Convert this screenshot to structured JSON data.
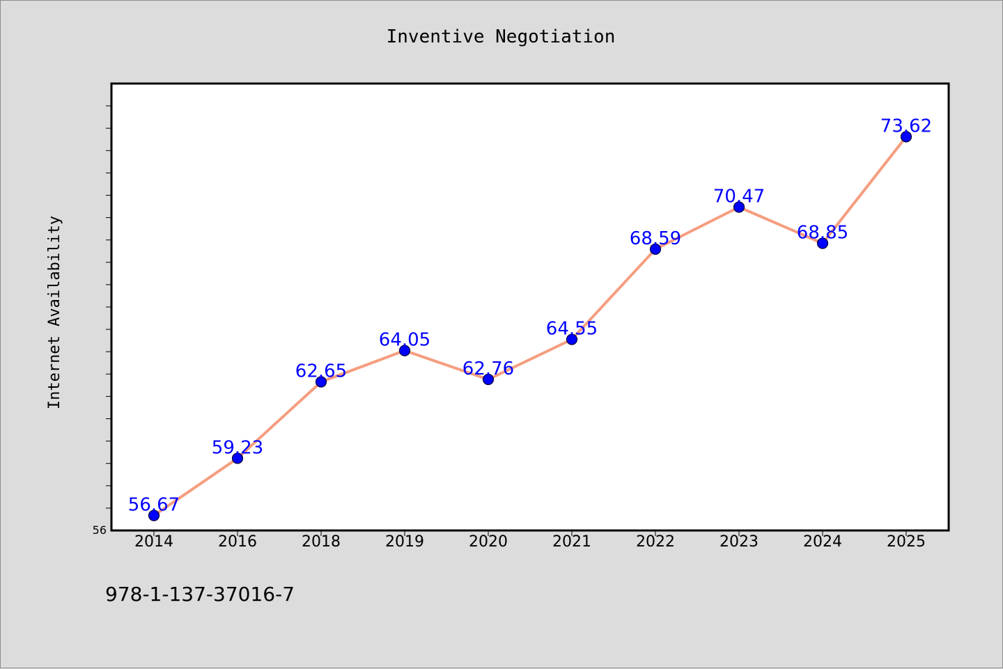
{
  "chart_data": {
    "type": "line",
    "title": "Inventive Negotiation",
    "xlabel": "",
    "ylabel": "Internet Availability",
    "categories": [
      "2014",
      "2016",
      "2018",
      "2019",
      "2020",
      "2021",
      "2022",
      "2023",
      "2024",
      "2025"
    ],
    "series": [
      {
        "values": [
          56.67,
          59.23,
          62.65,
          64.05,
          62.76,
          64.55,
          68.59,
          70.47,
          68.85,
          73.62
        ],
        "labels": [
          "56.67",
          "59.23",
          "62.65",
          "64.05",
          "62.76",
          "64.55",
          "68.59",
          "70.47",
          "68.85",
          "73.62"
        ]
      }
    ],
    "ylim": [
      56,
      76
    ],
    "y_tick_labels": [
      "56"
    ],
    "grid": false,
    "colors": {
      "line": "#f59e80",
      "marker": "#0000ff",
      "marker_edge": "#000033",
      "data_label": "#0000ff",
      "plot_background": "#ffffff",
      "figure_background": "#dcdcdc"
    }
  },
  "footer": {
    "identifier": "978-1-137-37016-7"
  }
}
